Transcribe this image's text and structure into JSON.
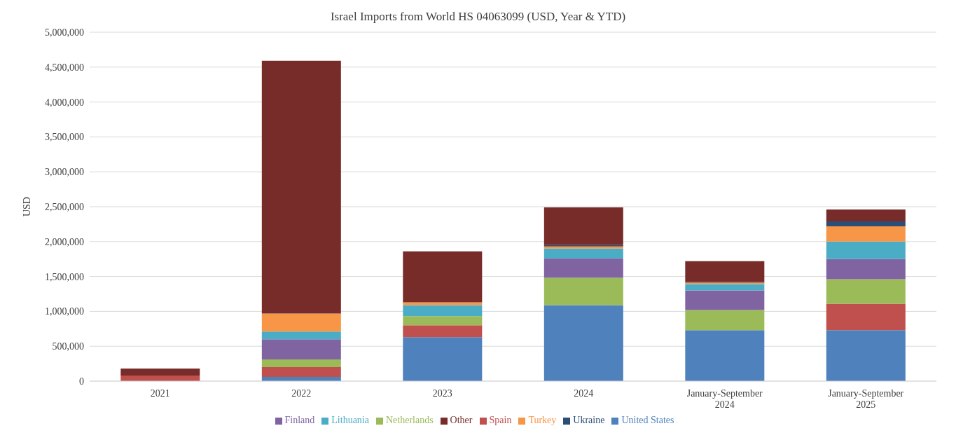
{
  "chart_data": {
    "type": "bar",
    "title": "Israel Imports from World HS 04063099  (USD, Year & YTD)",
    "ylabel": "USD",
    "stacked": true,
    "grid": "y",
    "legend": "bottom",
    "categories": [
      "2021",
      "2022",
      "2023",
      "2024",
      "January-September\n2024",
      "January-September\n2025"
    ],
    "ylim": [
      0,
      5000000
    ],
    "yticks": [
      {
        "value": 0,
        "label": "0"
      },
      {
        "value": 500000,
        "label": "500,000"
      },
      {
        "value": 1000000,
        "label": "1,000,000"
      },
      {
        "value": 1500000,
        "label": "1,500,000"
      },
      {
        "value": 2000000,
        "label": "2,000,000"
      },
      {
        "value": 2500000,
        "label": "2,500,000"
      },
      {
        "value": 3000000,
        "label": "3,000,000"
      },
      {
        "value": 3500000,
        "label": "3,500,000"
      },
      {
        "value": 4000000,
        "label": "4,000,000"
      },
      {
        "value": 4500000,
        "label": "4,500,000"
      },
      {
        "value": 5000000,
        "label": "5,000,000"
      }
    ],
    "series": [
      {
        "name": "United States",
        "color": "#4f81bd",
        "values": [
          0,
          60000,
          630000,
          1090000,
          730000,
          730000
        ]
      },
      {
        "name": "Spain",
        "color": "#c0504d",
        "values": [
          80000,
          140000,
          170000,
          0,
          0,
          380000
        ]
      },
      {
        "name": "Netherlands",
        "color": "#9bbb59",
        "values": [
          0,
          110000,
          130000,
          390000,
          290000,
          350000
        ]
      },
      {
        "name": "Finland",
        "color": "#8064a2",
        "values": [
          0,
          290000,
          0,
          280000,
          280000,
          290000
        ]
      },
      {
        "name": "Lithuania",
        "color": "#4bacc6",
        "values": [
          0,
          110000,
          160000,
          140000,
          90000,
          250000
        ]
      },
      {
        "name": "Turkey",
        "color": "#f79646",
        "values": [
          0,
          260000,
          40000,
          30000,
          20000,
          220000
        ]
      },
      {
        "name": "Ukraine",
        "color": "#2c4d75",
        "values": [
          0,
          0,
          0,
          20000,
          10000,
          70000
        ]
      },
      {
        "name": "Other",
        "color": "#772c2a",
        "values": [
          100000,
          3620000,
          730000,
          540000,
          300000,
          170000
        ]
      }
    ]
  }
}
